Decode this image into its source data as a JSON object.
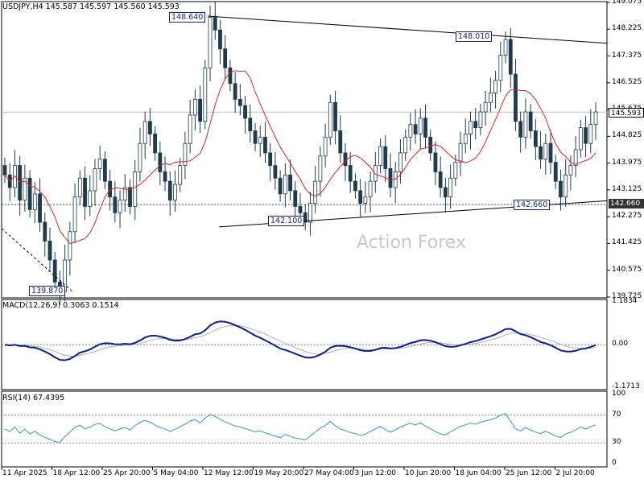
{
  "chart_data": [
    {
      "type": "candlestick",
      "symbol_header": "USDJPY,H4  145.587 145.597 145.560 145.593",
      "ylim": [
        139.725,
        149.075
      ],
      "y_ticks": [
        "149.075",
        "148.225",
        "147.375",
        "146.525",
        "145.675",
        "144.825",
        "143.975",
        "143.125",
        "142.275",
        "141.425",
        "140.575",
        "139.725"
      ],
      "current_price": "145.593",
      "support_level": "142.660",
      "annotations": [
        "148.640",
        "148.010",
        "142.100",
        "142.660",
        "139.870"
      ],
      "watermark": "Action Forex",
      "close_series": [
        143.6,
        143.2,
        143.9,
        142.8,
        143.5,
        142.5,
        143.0,
        142.1,
        141.5,
        140.9,
        140.2,
        139.9,
        140.9,
        141.8,
        142.9,
        143.5,
        142.6,
        143.1,
        143.8,
        144.1,
        143.4,
        142.9,
        142.4,
        142.8,
        143.2,
        142.6,
        143.7,
        144.6,
        145.3,
        144.9,
        144.3,
        143.7,
        143.4,
        142.8,
        143.3,
        143.9,
        144.6,
        145.5,
        146.0,
        145.3,
        147.0,
        148.6,
        148.2,
        147.6,
        147.0,
        146.5,
        146.0,
        145.8,
        145.4,
        145.0,
        144.6,
        144.8,
        144.3,
        143.9,
        143.5,
        143.0,
        143.6,
        143.1,
        142.6,
        142.4,
        142.1,
        142.7,
        143.4,
        144.2,
        144.8,
        145.9,
        145.0,
        144.3,
        143.9,
        143.4,
        143.1,
        142.7,
        142.9,
        143.4,
        143.9,
        144.5,
        143.8,
        143.2,
        143.7,
        144.3,
        144.8,
        145.2,
        144.9,
        145.4,
        144.8,
        144.3,
        143.7,
        143.2,
        142.9,
        143.5,
        144.0,
        144.6,
        144.9,
        145.3,
        145.1,
        145.6,
        145.9,
        146.2,
        146.6,
        147.4,
        147.9,
        146.8,
        145.3,
        144.8,
        145.6,
        145.0,
        144.5,
        144.1,
        144.6,
        144.0,
        143.4,
        142.9,
        143.6,
        143.9,
        144.4,
        145.1,
        144.6,
        145.2,
        145.6
      ]
    },
    {
      "type": "line",
      "title": "MACD(12,26,9) 0.3063 0.1514",
      "ylim": [
        -1.1713,
        1.1834
      ],
      "y_ticks": [
        "1.1834",
        "0.00",
        "-1.1713"
      ]
    },
    {
      "type": "line",
      "title": "RSI(14) 67.4395",
      "ylim": [
        0,
        100
      ],
      "y_ticks": [
        "100",
        "70",
        "30",
        "0"
      ]
    }
  ],
  "x_ticks": [
    "11 Apr 2025",
    "18 Apr 12:00",
    "25 Apr 20:00",
    "5 May 04:00",
    "12 May 12:00",
    "19 May 20:00",
    "27 May 04:00",
    "3 Jun 12:00",
    "10 Jun 20:00",
    "18 Jun 04:00",
    "25 Jun 12:00",
    "2 Jul 20:00"
  ],
  "colors": {
    "candle": "#1f3b4d",
    "ma": "#d62728",
    "macd": "#0b1f8c",
    "signal": "#b0b0b0",
    "rsi": "#3399cc",
    "trend": "#000000",
    "annot": "#1a237e"
  }
}
